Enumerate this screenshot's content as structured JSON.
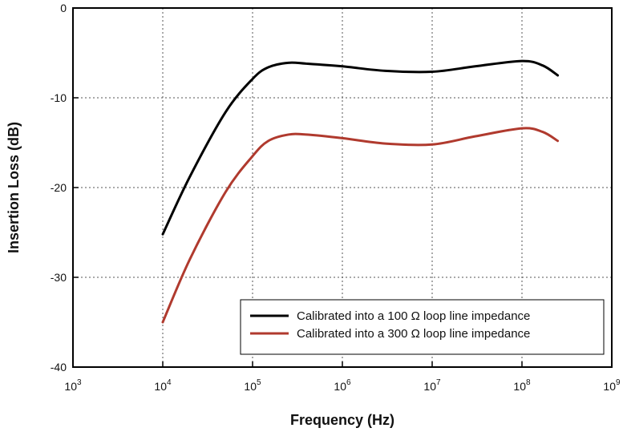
{
  "chart_data": {
    "type": "line",
    "title": "",
    "xlabel": "Frequency (Hz)",
    "ylabel": "Insertion Loss (dB)",
    "x_scale": "log",
    "xlim": [
      1000,
      1000000000
    ],
    "ylim": [
      -40,
      0
    ],
    "x_ticks": [
      {
        "base": "10",
        "exp": "3",
        "value": 1000
      },
      {
        "base": "10",
        "exp": "4",
        "value": 10000
      },
      {
        "base": "10",
        "exp": "5",
        "value": 100000
      },
      {
        "base": "10",
        "exp": "6",
        "value": 1000000
      },
      {
        "base": "10",
        "exp": "7",
        "value": 10000000
      },
      {
        "base": "10",
        "exp": "8",
        "value": 100000000
      },
      {
        "base": "10",
        "exp": "9",
        "value": 1000000000
      }
    ],
    "y_ticks": [
      "0",
      "-10",
      "-20",
      "-30",
      "-40"
    ],
    "y_tick_values": [
      0,
      -10,
      -20,
      -30,
      -40
    ],
    "grid": true,
    "legend_position": "bottom-right",
    "series": [
      {
        "name": "Calibrated into a 100 Ω loop line impedance",
        "color": "#000000",
        "x": [
          10000,
          20000,
          50000,
          100000,
          150000,
          250000,
          400000,
          1000000,
          3000000,
          10000000,
          30000000,
          100000000,
          170000000,
          250000000
        ],
        "y": [
          -25.2,
          -18.8,
          -11.6,
          -7.9,
          -6.6,
          -6.1,
          -6.2,
          -6.5,
          -7.0,
          -7.1,
          -6.5,
          -5.9,
          -6.4,
          -7.5
        ]
      },
      {
        "name": "Calibrated into a 300 Ω loop line impedance",
        "color": "#b03a2e",
        "x": [
          10000,
          20000,
          50000,
          100000,
          150000,
          250000,
          400000,
          1000000,
          3000000,
          10000000,
          30000000,
          100000000,
          170000000,
          250000000
        ],
        "y": [
          -35.0,
          -28.0,
          -20.5,
          -16.5,
          -14.8,
          -14.1,
          -14.1,
          -14.5,
          -15.1,
          -15.2,
          -14.3,
          -13.4,
          -13.8,
          -14.8
        ]
      }
    ]
  }
}
